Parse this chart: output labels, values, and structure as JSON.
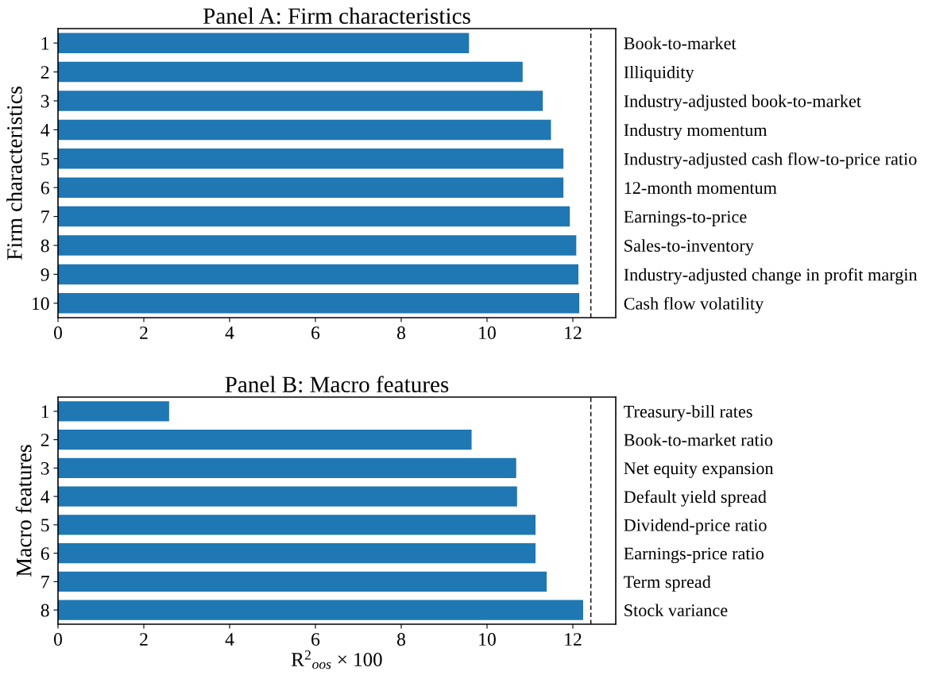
{
  "chart_data": [
    {
      "type": "bar",
      "orientation": "horizontal",
      "title": "Panel A: Firm characteristics",
      "ylabel": "Firm characteristics",
      "categories": [
        "1",
        "2",
        "3",
        "4",
        "5",
        "6",
        "7",
        "8",
        "9",
        "10"
      ],
      "y2_categories": [
        "Book-to-market",
        "Illiquidity",
        "Industry-adjusted book-to-market",
        "Industry momentum",
        "Industry-adjusted cash flow-to-price ratio",
        "12-month momentum",
        "Earnings-to-price",
        "Sales-to-inventory",
        "Industry-adjusted change in profit margin",
        "Cash flow volatility"
      ],
      "values": [
        9.58,
        10.83,
        11.3,
        11.49,
        11.78,
        11.78,
        11.93,
        12.08,
        12.13,
        12.15
      ],
      "color": "#1f77b4",
      "xlim": [
        0,
        13
      ],
      "xticks": [
        0,
        2,
        4,
        6,
        8,
        10,
        12
      ],
      "ref_lines": [
        {
          "axis": "x",
          "value": 12.42,
          "color": "#000000",
          "line_style": "dashed"
        }
      ],
      "grid": false
    },
    {
      "type": "bar",
      "orientation": "horizontal",
      "title": "Panel B: Macro features",
      "ylabel": "Macro features",
      "xlabel": "R$^{2}$$_{oos}$ × 100",
      "categories": [
        "1",
        "2",
        "3",
        "4",
        "5",
        "6",
        "7",
        "8"
      ],
      "y2_categories": [
        "Treasury-bill rates",
        "Book-to-market ratio",
        "Net equity expansion",
        "Default yield spread",
        "Dividend-price ratio",
        "Earnings-price ratio",
        "Term spread",
        "Stock variance"
      ],
      "values": [
        2.59,
        9.64,
        10.68,
        10.7,
        11.13,
        11.13,
        11.39,
        12.24
      ],
      "color": "#1f77b4",
      "xlim": [
        0,
        13
      ],
      "xticks": [
        0,
        2,
        4,
        6,
        8,
        10,
        12
      ],
      "ref_lines": [
        {
          "axis": "x",
          "value": 12.42,
          "color": "#000000",
          "line_style": "dashed"
        }
      ],
      "grid": false
    }
  ]
}
